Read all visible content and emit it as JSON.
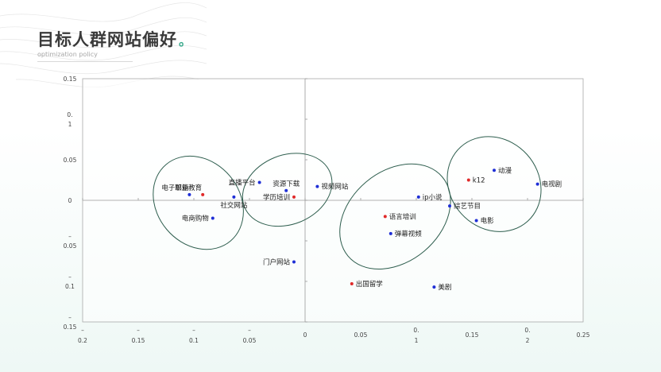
{
  "header": {
    "title": "目标人群网站偏好",
    "title_dot": "。",
    "subtitle": "optimization policy"
  },
  "colors": {
    "accent": "#3aa98c",
    "point_blue": "#1f2fd6",
    "point_red": "#e02a2a",
    "ellipse": "#2e5e4e",
    "axis": "#999999"
  },
  "chart_data": {
    "type": "scatter",
    "xlim": [
      -0.2,
      0.25
    ],
    "ylim": [
      -0.15,
      0.15
    ],
    "grid": false,
    "x_ticks": [
      {
        "value": -0.2,
        "lines": [
          "–",
          "0.2"
        ]
      },
      {
        "value": -0.15,
        "lines": [
          "–",
          "0.15"
        ]
      },
      {
        "value": -0.1,
        "lines": [
          "–",
          "0.1"
        ]
      },
      {
        "value": -0.05,
        "lines": [
          "–",
          "0.05"
        ]
      },
      {
        "value": 0,
        "lines": [
          "0"
        ]
      },
      {
        "value": 0.05,
        "lines": [
          "0.05"
        ]
      },
      {
        "value": 0.1,
        "lines": [
          "0.",
          "1"
        ]
      },
      {
        "value": 0.15,
        "lines": [
          "0.15"
        ]
      },
      {
        "value": 0.2,
        "lines": [
          "0.",
          "2"
        ]
      },
      {
        "value": 0.25,
        "lines": [
          "0.25"
        ]
      }
    ],
    "y_ticks": [
      {
        "value": 0.15,
        "lines": [
          "0.15"
        ]
      },
      {
        "value": 0.1,
        "lines": [
          "0.",
          "1"
        ]
      },
      {
        "value": 0.05,
        "lines": [
          "0.05"
        ]
      },
      {
        "value": 0,
        "lines": [
          "0"
        ]
      },
      {
        "value": -0.05,
        "lines": [
          "–",
          "0.05"
        ]
      },
      {
        "value": -0.1,
        "lines": [
          "–",
          "0.1"
        ]
      },
      {
        "value": -0.15,
        "lines": [
          "–",
          "0.15"
        ]
      }
    ],
    "points": [
      {
        "label": "电子邮箱",
        "x": -0.104,
        "y": 0.007,
        "color": "blue",
        "label_pos": "above-left"
      },
      {
        "label": "职业教育",
        "x": -0.092,
        "y": 0.007,
        "color": "red",
        "label_pos": "above-left"
      },
      {
        "label": "直播平台",
        "x": -0.041,
        "y": 0.022,
        "color": "blue",
        "label_pos": "left"
      },
      {
        "label": "资源下载",
        "x": -0.017,
        "y": 0.012,
        "color": "blue",
        "label_pos": "above"
      },
      {
        "label": "学历培训",
        "x": -0.01,
        "y": 0.004,
        "color": "red",
        "label_pos": "left"
      },
      {
        "label": "视频网站",
        "x": 0.011,
        "y": 0.017,
        "color": "blue",
        "label_pos": "right"
      },
      {
        "label": "社交网站",
        "x": -0.064,
        "y": 0.004,
        "color": "blue",
        "label_pos": "below"
      },
      {
        "label": "电商购物",
        "x": -0.083,
        "y": -0.022,
        "color": "blue",
        "label_pos": "left"
      },
      {
        "label": "门户网站",
        "x": -0.01,
        "y": -0.076,
        "color": "blue",
        "label_pos": "left"
      },
      {
        "label": "出国留学",
        "x": 0.042,
        "y": -0.103,
        "color": "red",
        "label_pos": "right"
      },
      {
        "label": "美剧",
        "x": 0.116,
        "y": -0.107,
        "color": "blue",
        "label_pos": "right"
      },
      {
        "label": "ip小说",
        "x": 0.102,
        "y": 0.004,
        "color": "blue",
        "label_pos": "right"
      },
      {
        "label": "k12",
        "x": 0.147,
        "y": 0.025,
        "color": "red",
        "label_pos": "right"
      },
      {
        "label": "动漫",
        "x": 0.17,
        "y": 0.037,
        "color": "blue",
        "label_pos": "right"
      },
      {
        "label": "电视剧",
        "x": 0.209,
        "y": 0.02,
        "color": "blue",
        "label_pos": "right"
      },
      {
        "label": "综艺节目",
        "x": 0.13,
        "y": -0.007,
        "color": "blue",
        "label_pos": "right"
      },
      {
        "label": "语言培训",
        "x": 0.072,
        "y": -0.02,
        "color": "red",
        "label_pos": "right"
      },
      {
        "label": "电影",
        "x": 0.154,
        "y": -0.025,
        "color": "blue",
        "label_pos": "right"
      },
      {
        "label": "弹幕视频",
        "x": 0.077,
        "y": -0.041,
        "color": "blue",
        "label_pos": "right"
      }
    ],
    "clusters": [
      {
        "cx": -0.096,
        "cy": -0.003,
        "rx": 0.043,
        "ry": 0.052,
        "angle": -40
      },
      {
        "cx": -0.016,
        "cy": 0.013,
        "rx": 0.048,
        "ry": 0.036,
        "angle": -22
      },
      {
        "cx": 0.081,
        "cy": -0.02,
        "rx": 0.047,
        "ry": 0.064,
        "angle": 50
      },
      {
        "cx": 0.17,
        "cy": 0.02,
        "rx": 0.046,
        "ry": 0.052,
        "angle": -42
      }
    ]
  }
}
